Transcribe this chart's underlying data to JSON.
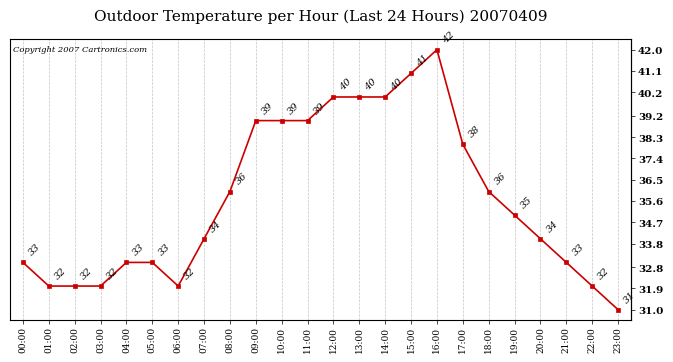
{
  "title": "Outdoor Temperature per Hour (Last 24 Hours) 20070409",
  "copyright_text": "Copyright 2007 Cartronics.com",
  "hours": [
    "00:00",
    "01:00",
    "02:00",
    "03:00",
    "04:00",
    "05:00",
    "06:00",
    "07:00",
    "08:00",
    "09:00",
    "10:00",
    "11:00",
    "12:00",
    "13:00",
    "14:00",
    "15:00",
    "16:00",
    "17:00",
    "18:00",
    "19:00",
    "20:00",
    "21:00",
    "22:00",
    "23:00"
  ],
  "temps": [
    33,
    32,
    32,
    32,
    33,
    33,
    32,
    34,
    36,
    39,
    39,
    39,
    40,
    40,
    40,
    41,
    42,
    38,
    36,
    35,
    34,
    33,
    32,
    31
  ],
  "line_color": "#cc0000",
  "marker_color": "#cc0000",
  "bg_color": "#ffffff",
  "grid_color": "#aaaaaa",
  "title_fontsize": 11,
  "annotation_fontsize": 7,
  "ylim_min": 30.55,
  "ylim_max": 42.45,
  "yticks_right": [
    31.0,
    31.9,
    32.8,
    33.8,
    34.7,
    35.6,
    36.5,
    37.4,
    38.3,
    39.2,
    40.2,
    41.1,
    42.0
  ]
}
